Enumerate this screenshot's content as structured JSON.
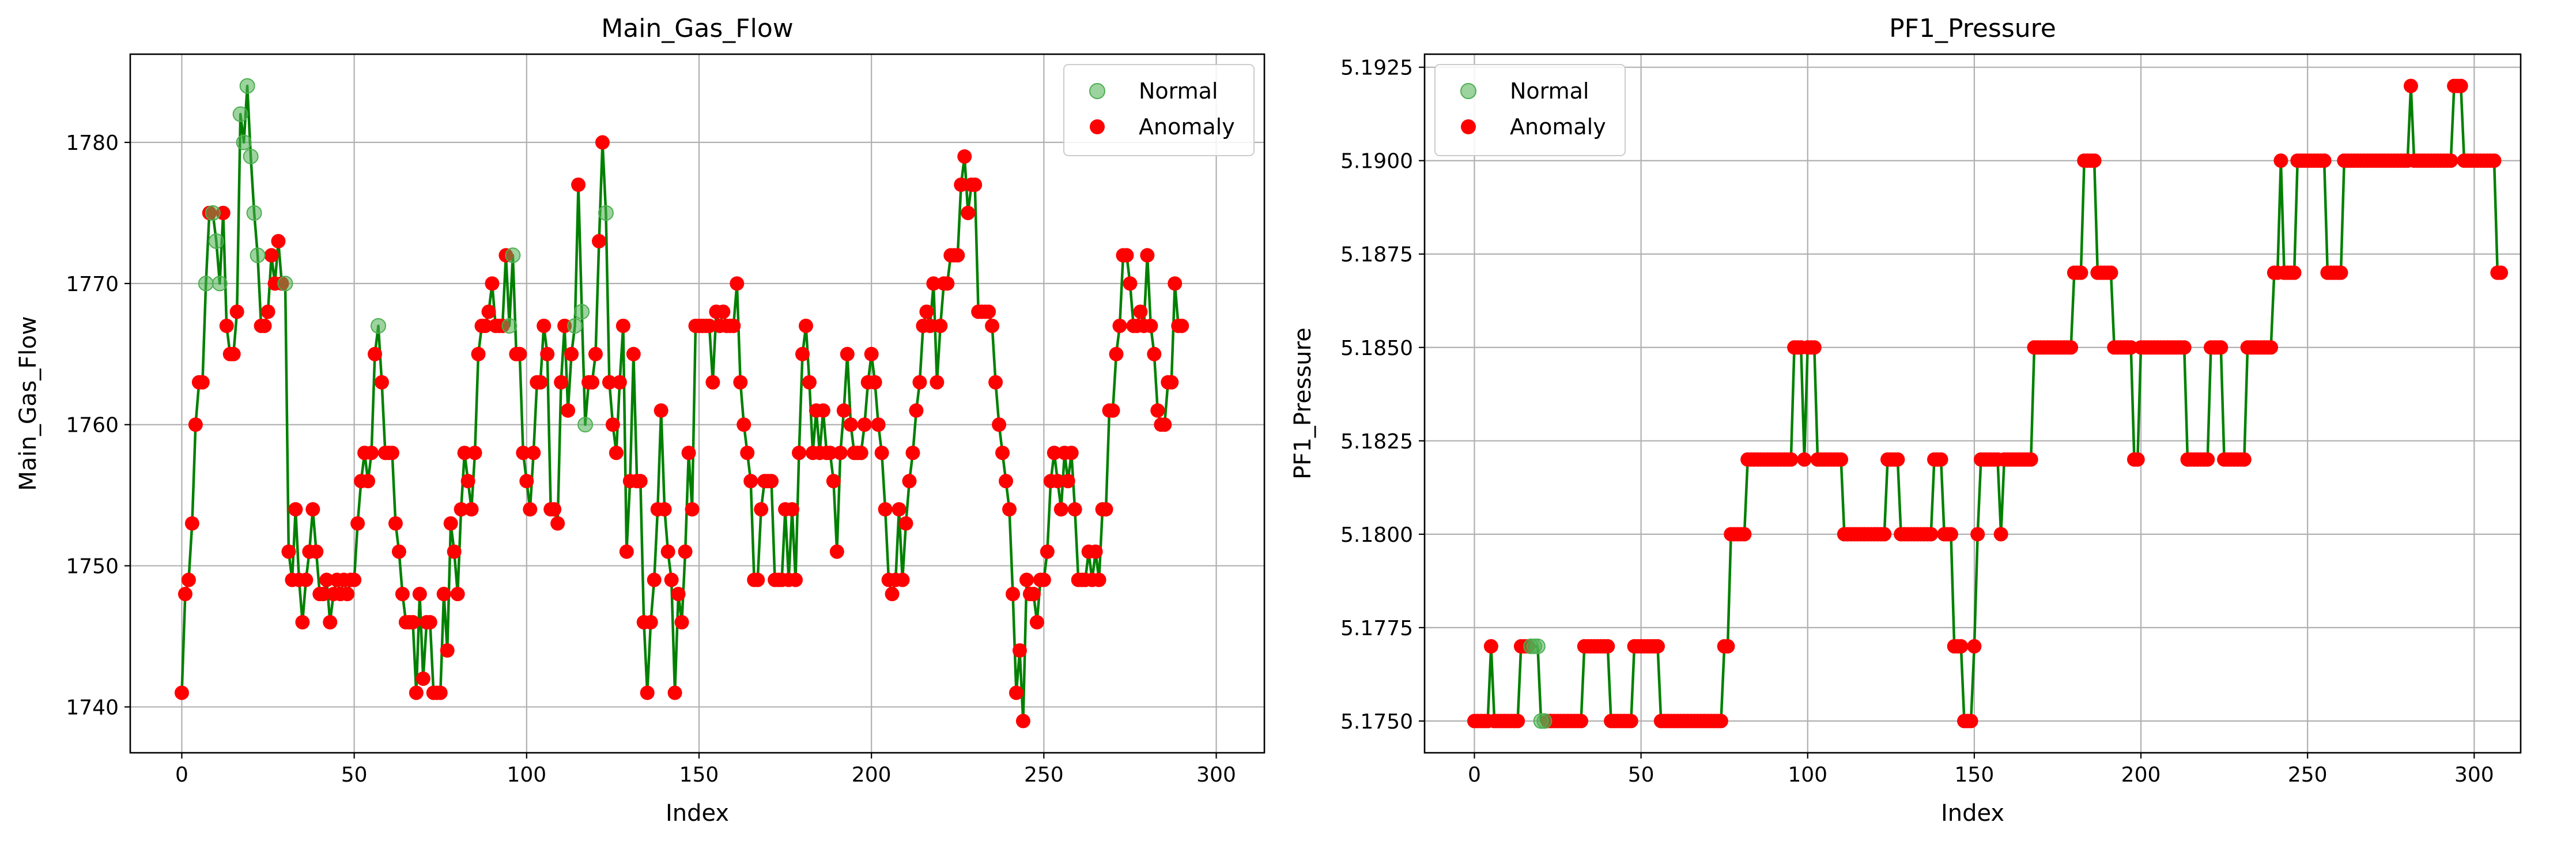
{
  "colors": {
    "line": "#008000",
    "normal": "#4caf50",
    "anomaly": "#ff0000",
    "grid": "#b0b0b0",
    "axes": "#000000"
  },
  "chart_data": [
    {
      "type": "scatter",
      "title": "Main_Gas_Flow",
      "xlabel": "Index",
      "ylabel": "Main_Gas_Flow",
      "xlim": [
        -14.95,
        313.95
      ],
      "ylim": [
        1736.75,
        1786.25
      ],
      "xticks": [
        0,
        50,
        100,
        150,
        200,
        250,
        300
      ],
      "yticks": [
        1740,
        1750,
        1760,
        1770,
        1780
      ],
      "ytick_labels": [
        "1740",
        "1750",
        "1760",
        "1770",
        "1780"
      ],
      "grid": true,
      "legend_position": "upper right",
      "legend": [
        "Normal",
        "Anomaly"
      ],
      "line_series": "Main_Gas_Flow",
      "values": [
        1741,
        1748,
        1749,
        1753,
        1760,
        1763,
        1763,
        1770,
        1775,
        1775,
        1773,
        1770,
        1775,
        1767,
        1765,
        1765,
        1768,
        1782,
        1780,
        1784,
        1779,
        1775,
        1772,
        1767,
        1767,
        1768,
        1772,
        1770,
        1773,
        1770,
        1770,
        1751,
        1749,
        1754,
        1749,
        1746,
        1749,
        1751,
        1754,
        1751,
        1748,
        1748,
        1749,
        1746,
        1748,
        1749,
        1748,
        1749,
        1748,
        1749,
        1749,
        1753,
        1756,
        1758,
        1756,
        1758,
        1765,
        1767,
        1763,
        1758,
        1758,
        1758,
        1753,
        1751,
        1748,
        1746,
        1746,
        1746,
        1741,
        1748,
        1742,
        1746,
        1746,
        1741,
        1741,
        1741,
        1748,
        1744,
        1753,
        1751,
        1748,
        1754,
        1758,
        1756,
        1754,
        1758,
        1765,
        1767,
        1767,
        1768,
        1770,
        1767,
        1767,
        1767,
        1772,
        1767,
        1772,
        1765,
        1765,
        1758,
        1756,
        1754,
        1758,
        1763,
        1763,
        1767,
        1765,
        1754,
        1754,
        1753,
        1763,
        1767,
        1761,
        1765,
        1767,
        1777,
        1768,
        1760,
        1763,
        1763,
        1765,
        1773,
        1780,
        1775,
        1763,
        1760,
        1758,
        1763,
        1767,
        1751,
        1756,
        1765,
        1756,
        1756,
        1746,
        1741,
        1746,
        1749,
        1754,
        1761,
        1754,
        1751,
        1749,
        1741,
        1748,
        1746,
        1751,
        1758,
        1754,
        1767,
        1767,
        1767,
        1767,
        1767,
        1763,
        1768,
        1767,
        1768,
        1767,
        1767,
        1767,
        1770,
        1763,
        1760,
        1758,
        1756,
        1749,
        1749,
        1754,
        1756,
        1756,
        1756,
        1749,
        1749,
        1749,
        1754,
        1749,
        1754,
        1749,
        1758,
        1765,
        1767,
        1763,
        1758,
        1761,
        1758,
        1761,
        1758,
        1758,
        1756,
        1751,
        1758,
        1761,
        1765,
        1760,
        1758,
        1758,
        1758,
        1760,
        1763,
        1765,
        1763,
        1760,
        1758,
        1754,
        1749,
        1748,
        1749,
        1754,
        1749,
        1753,
        1756,
        1758,
        1761,
        1763,
        1767,
        1768,
        1767,
        1770,
        1763,
        1767,
        1770,
        1770,
        1772,
        1772,
        1772,
        1777,
        1779,
        1775,
        1777,
        1777,
        1768,
        1768,
        1768,
        1768,
        1767,
        1763,
        1760,
        1758,
        1756,
        1754,
        1748,
        1741,
        1744,
        1739,
        1749,
        1748,
        1748,
        1746,
        1749,
        1749,
        1751,
        1756,
        1758,
        1756,
        1754,
        1758,
        1756,
        1758,
        1754,
        1749,
        1749,
        1749,
        1751,
        1749,
        1751,
        1749,
        1754,
        1754,
        1761,
        1761,
        1765,
        1767,
        1772,
        1772,
        1770,
        1767,
        1767,
        1768,
        1767,
        1772,
        1767,
        1765,
        1761,
        1760,
        1760,
        1763,
        1763,
        1770,
        1767,
        1767
      ],
      "normal_indices": [
        7,
        9,
        10,
        11,
        17,
        18,
        19,
        20,
        21,
        22,
        30,
        57,
        95,
        96,
        114,
        116,
        117,
        123
      ],
      "anomaly_indices": "all other points (0–299)"
    },
    {
      "type": "scatter",
      "title": "PF1_Pressure",
      "xlabel": "Index",
      "ylabel": "PF1_Pressure",
      "xlim": [
        -14.95,
        313.95
      ],
      "ylim": [
        5.17415,
        5.19285
      ],
      "xticks": [
        0,
        50,
        100,
        150,
        200,
        250,
        300
      ],
      "yticks": [
        5.175,
        5.1775,
        5.18,
        5.1825,
        5.185,
        5.1875,
        5.19,
        5.1925
      ],
      "ytick_labels": [
        "5.1750",
        "5.1775",
        "5.1800",
        "5.1825",
        "5.1850",
        "5.1875",
        "5.1900",
        "5.1925"
      ],
      "grid": true,
      "legend_position": "upper left",
      "legend": [
        "Normal",
        "Anomaly"
      ],
      "line_series": "PF1_Pressure",
      "values": [
        5.175,
        5.175,
        5.175,
        5.175,
        5.175,
        5.177,
        5.175,
        5.175,
        5.175,
        5.175,
        5.175,
        5.175,
        5.175,
        5.175,
        5.177,
        5.177,
        5.177,
        5.177,
        5.177,
        5.177,
        5.175,
        5.175,
        5.175,
        5.175,
        5.175,
        5.175,
        5.175,
        5.175,
        5.175,
        5.175,
        5.175,
        5.175,
        5.175,
        5.177,
        5.177,
        5.177,
        5.177,
        5.177,
        5.177,
        5.177,
        5.177,
        5.175,
        5.175,
        5.175,
        5.175,
        5.175,
        5.175,
        5.175,
        5.177,
        5.177,
        5.177,
        5.177,
        5.177,
        5.177,
        5.177,
        5.177,
        5.175,
        5.175,
        5.175,
        5.175,
        5.175,
        5.175,
        5.175,
        5.175,
        5.175,
        5.175,
        5.175,
        5.175,
        5.175,
        5.175,
        5.175,
        5.175,
        5.175,
        5.175,
        5.175,
        5.177,
        5.177,
        5.18,
        5.18,
        5.18,
        5.18,
        5.18,
        5.182,
        5.182,
        5.182,
        5.182,
        5.182,
        5.182,
        5.182,
        5.182,
        5.182,
        5.182,
        5.182,
        5.182,
        5.182,
        5.182,
        5.185,
        5.185,
        5.185,
        5.182,
        5.185,
        5.185,
        5.185,
        5.182,
        5.182,
        5.182,
        5.182,
        5.182,
        5.182,
        5.182,
        5.182,
        5.18,
        5.18,
        5.18,
        5.18,
        5.18,
        5.18,
        5.18,
        5.18,
        5.18,
        5.18,
        5.18,
        5.18,
        5.18,
        5.182,
        5.182,
        5.182,
        5.182,
        5.18,
        5.18,
        5.18,
        5.18,
        5.18,
        5.18,
        5.18,
        5.18,
        5.18,
        5.18,
        5.182,
        5.182,
        5.182,
        5.18,
        5.18,
        5.18,
        5.177,
        5.177,
        5.177,
        5.175,
        5.175,
        5.175,
        5.177,
        5.18,
        5.182,
        5.182,
        5.182,
        5.182,
        5.182,
        5.182,
        5.18,
        5.182,
        5.182,
        5.182,
        5.182,
        5.182,
        5.182,
        5.182,
        5.182,
        5.182,
        5.185,
        5.185,
        5.185,
        5.185,
        5.185,
        5.185,
        5.185,
        5.185,
        5.185,
        5.185,
        5.185,
        5.185,
        5.187,
        5.187,
        5.187,
        5.19,
        5.19,
        5.19,
        5.19,
        5.187,
        5.187,
        5.187,
        5.187,
        5.187,
        5.185,
        5.185,
        5.185,
        5.185,
        5.185,
        5.185,
        5.182,
        5.182,
        5.185,
        5.185,
        5.185,
        5.185,
        5.185,
        5.185,
        5.185,
        5.185,
        5.185,
        5.185,
        5.185,
        5.185,
        5.185,
        5.185,
        5.182,
        5.182,
        5.182,
        5.182,
        5.182,
        5.182,
        5.182,
        5.185,
        5.185,
        5.185,
        5.185,
        5.182,
        5.182,
        5.182,
        5.182,
        5.182,
        5.182,
        5.182,
        5.185,
        5.185,
        5.185,
        5.185,
        5.185,
        5.185,
        5.185,
        5.185,
        5.187,
        5.187,
        5.19,
        5.187,
        5.187,
        5.187,
        5.187,
        5.19,
        5.19,
        5.19,
        5.19,
        5.19,
        5.19,
        5.19,
        5.19,
        5.19,
        5.187,
        5.187,
        5.187,
        5.187,
        5.187,
        5.19,
        5.19,
        5.19,
        5.19,
        5.19,
        5.19,
        5.19,
        5.19,
        5.19,
        5.19,
        5.19,
        5.19,
        5.19,
        5.19,
        5.19,
        5.19,
        5.19,
        5.19,
        5.19,
        5.19,
        5.192,
        5.19,
        5.19,
        5.19,
        5.19,
        5.19,
        5.19,
        5.19,
        5.19,
        5.19,
        5.19,
        5.19,
        5.19,
        5.192,
        5.192,
        5.192,
        5.19,
        5.19,
        5.19,
        5.19,
        5.19,
        5.19,
        5.19,
        5.19,
        5.19,
        5.19,
        5.187,
        5.187
      ],
      "normal_indices": [
        17,
        18,
        19,
        20,
        21
      ],
      "anomaly_indices": "all other points (0–299)"
    }
  ]
}
